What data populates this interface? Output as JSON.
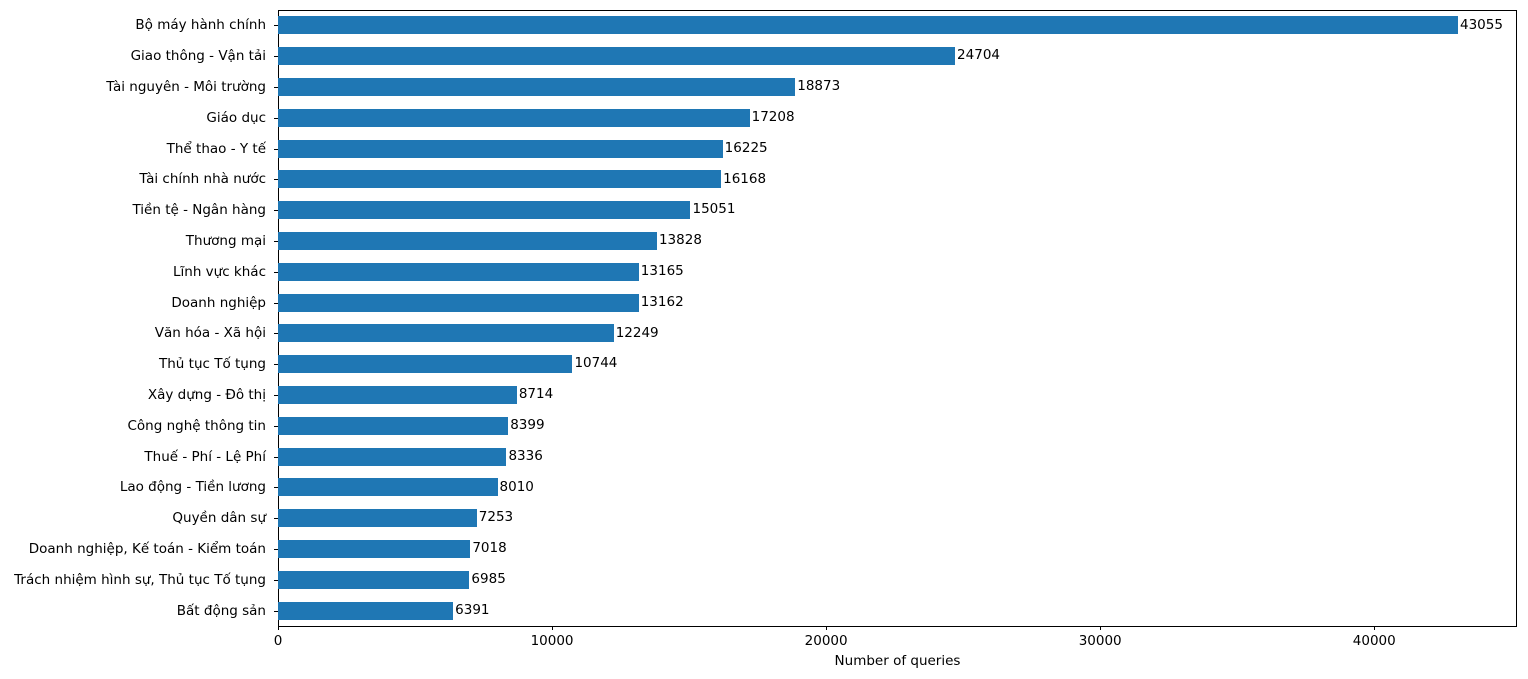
{
  "chart_data": {
    "type": "bar",
    "orientation": "horizontal",
    "title": "",
    "xlabel": "Number of queries",
    "ylabel": "",
    "categories": [
      "Bộ máy hành chính",
      "Giao thông - Vận tải",
      "Tài nguyên - Môi trường",
      "Giáo dục",
      "Thể thao - Y tế",
      "Tài chính nhà nước",
      "Tiền tệ - Ngân hàng",
      "Thương mại",
      "Lĩnh vực khác",
      "Doanh nghiệp",
      "Văn hóa - Xã hội",
      "Thủ tục Tố tụng",
      "Xây dựng - Đô thị",
      "Công nghệ thông tin",
      "Thuế - Phí - Lệ Phí",
      "Lao động - Tiền lương",
      "Quyền dân sự",
      "Doanh nghiệp, Kế toán - Kiểm toán",
      "Trách nhiệm hình sự, Thủ tục Tố tụng",
      "Bất động sản"
    ],
    "values": [
      43055,
      24704,
      18873,
      17208,
      16225,
      16168,
      15051,
      13828,
      13165,
      13162,
      12249,
      10744,
      8714,
      8399,
      8336,
      8010,
      7253,
      7018,
      6985,
      6391
    ],
    "x_ticks": [
      0,
      10000,
      20000,
      30000,
      40000
    ],
    "xlim": [
      0,
      45208
    ],
    "bar_color": "#1f77b4",
    "value_labels_shown": true,
    "grid": false,
    "legend": "none"
  }
}
